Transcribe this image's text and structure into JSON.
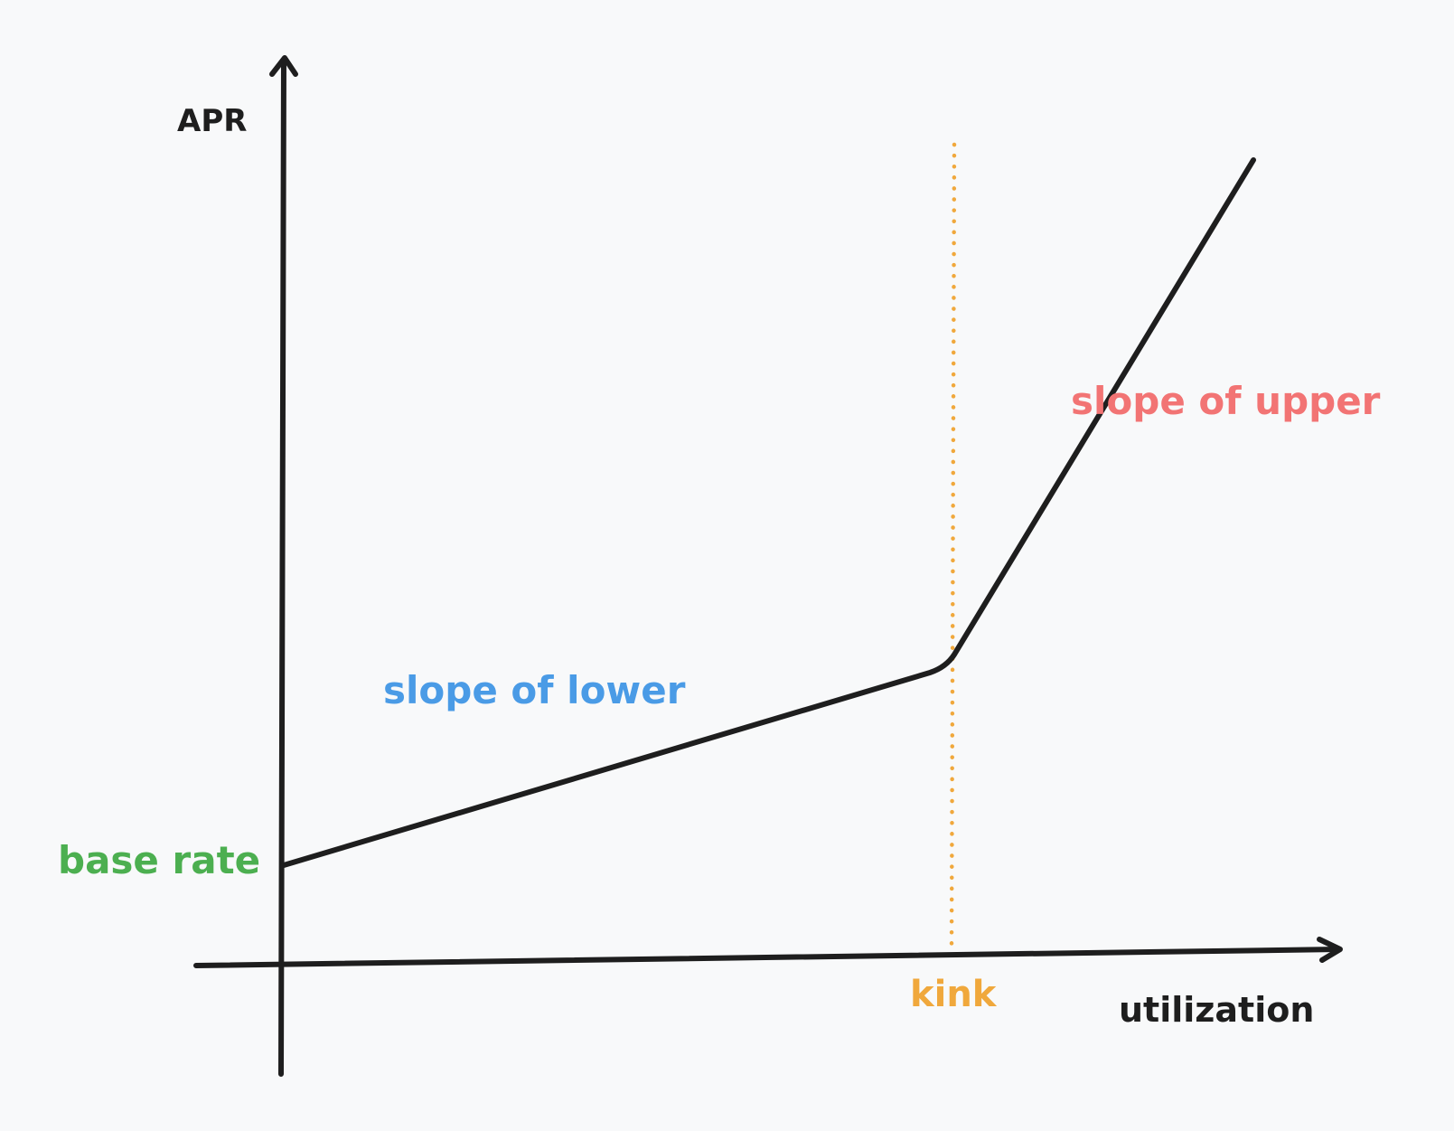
{
  "colors": {
    "background": "#f8f9fa",
    "axis": "#1e1e1e",
    "curve": "#1e1e1e",
    "base_rate": "#4caf50",
    "slope_lower": "#4a9be6",
    "slope_upper": "#f27474",
    "kink": "#f0a83c",
    "axis_label": "#1e1e1e"
  },
  "axes": {
    "y_label": "APR",
    "x_label": "utilization"
  },
  "annotations": {
    "base_rate": "base rate",
    "slope_lower": "slope of lower",
    "slope_upper": "slope of upper",
    "kink": "kink"
  },
  "icons": {
    "y_arrow": "arrow-up-icon",
    "x_arrow": "arrow-right-icon"
  }
}
